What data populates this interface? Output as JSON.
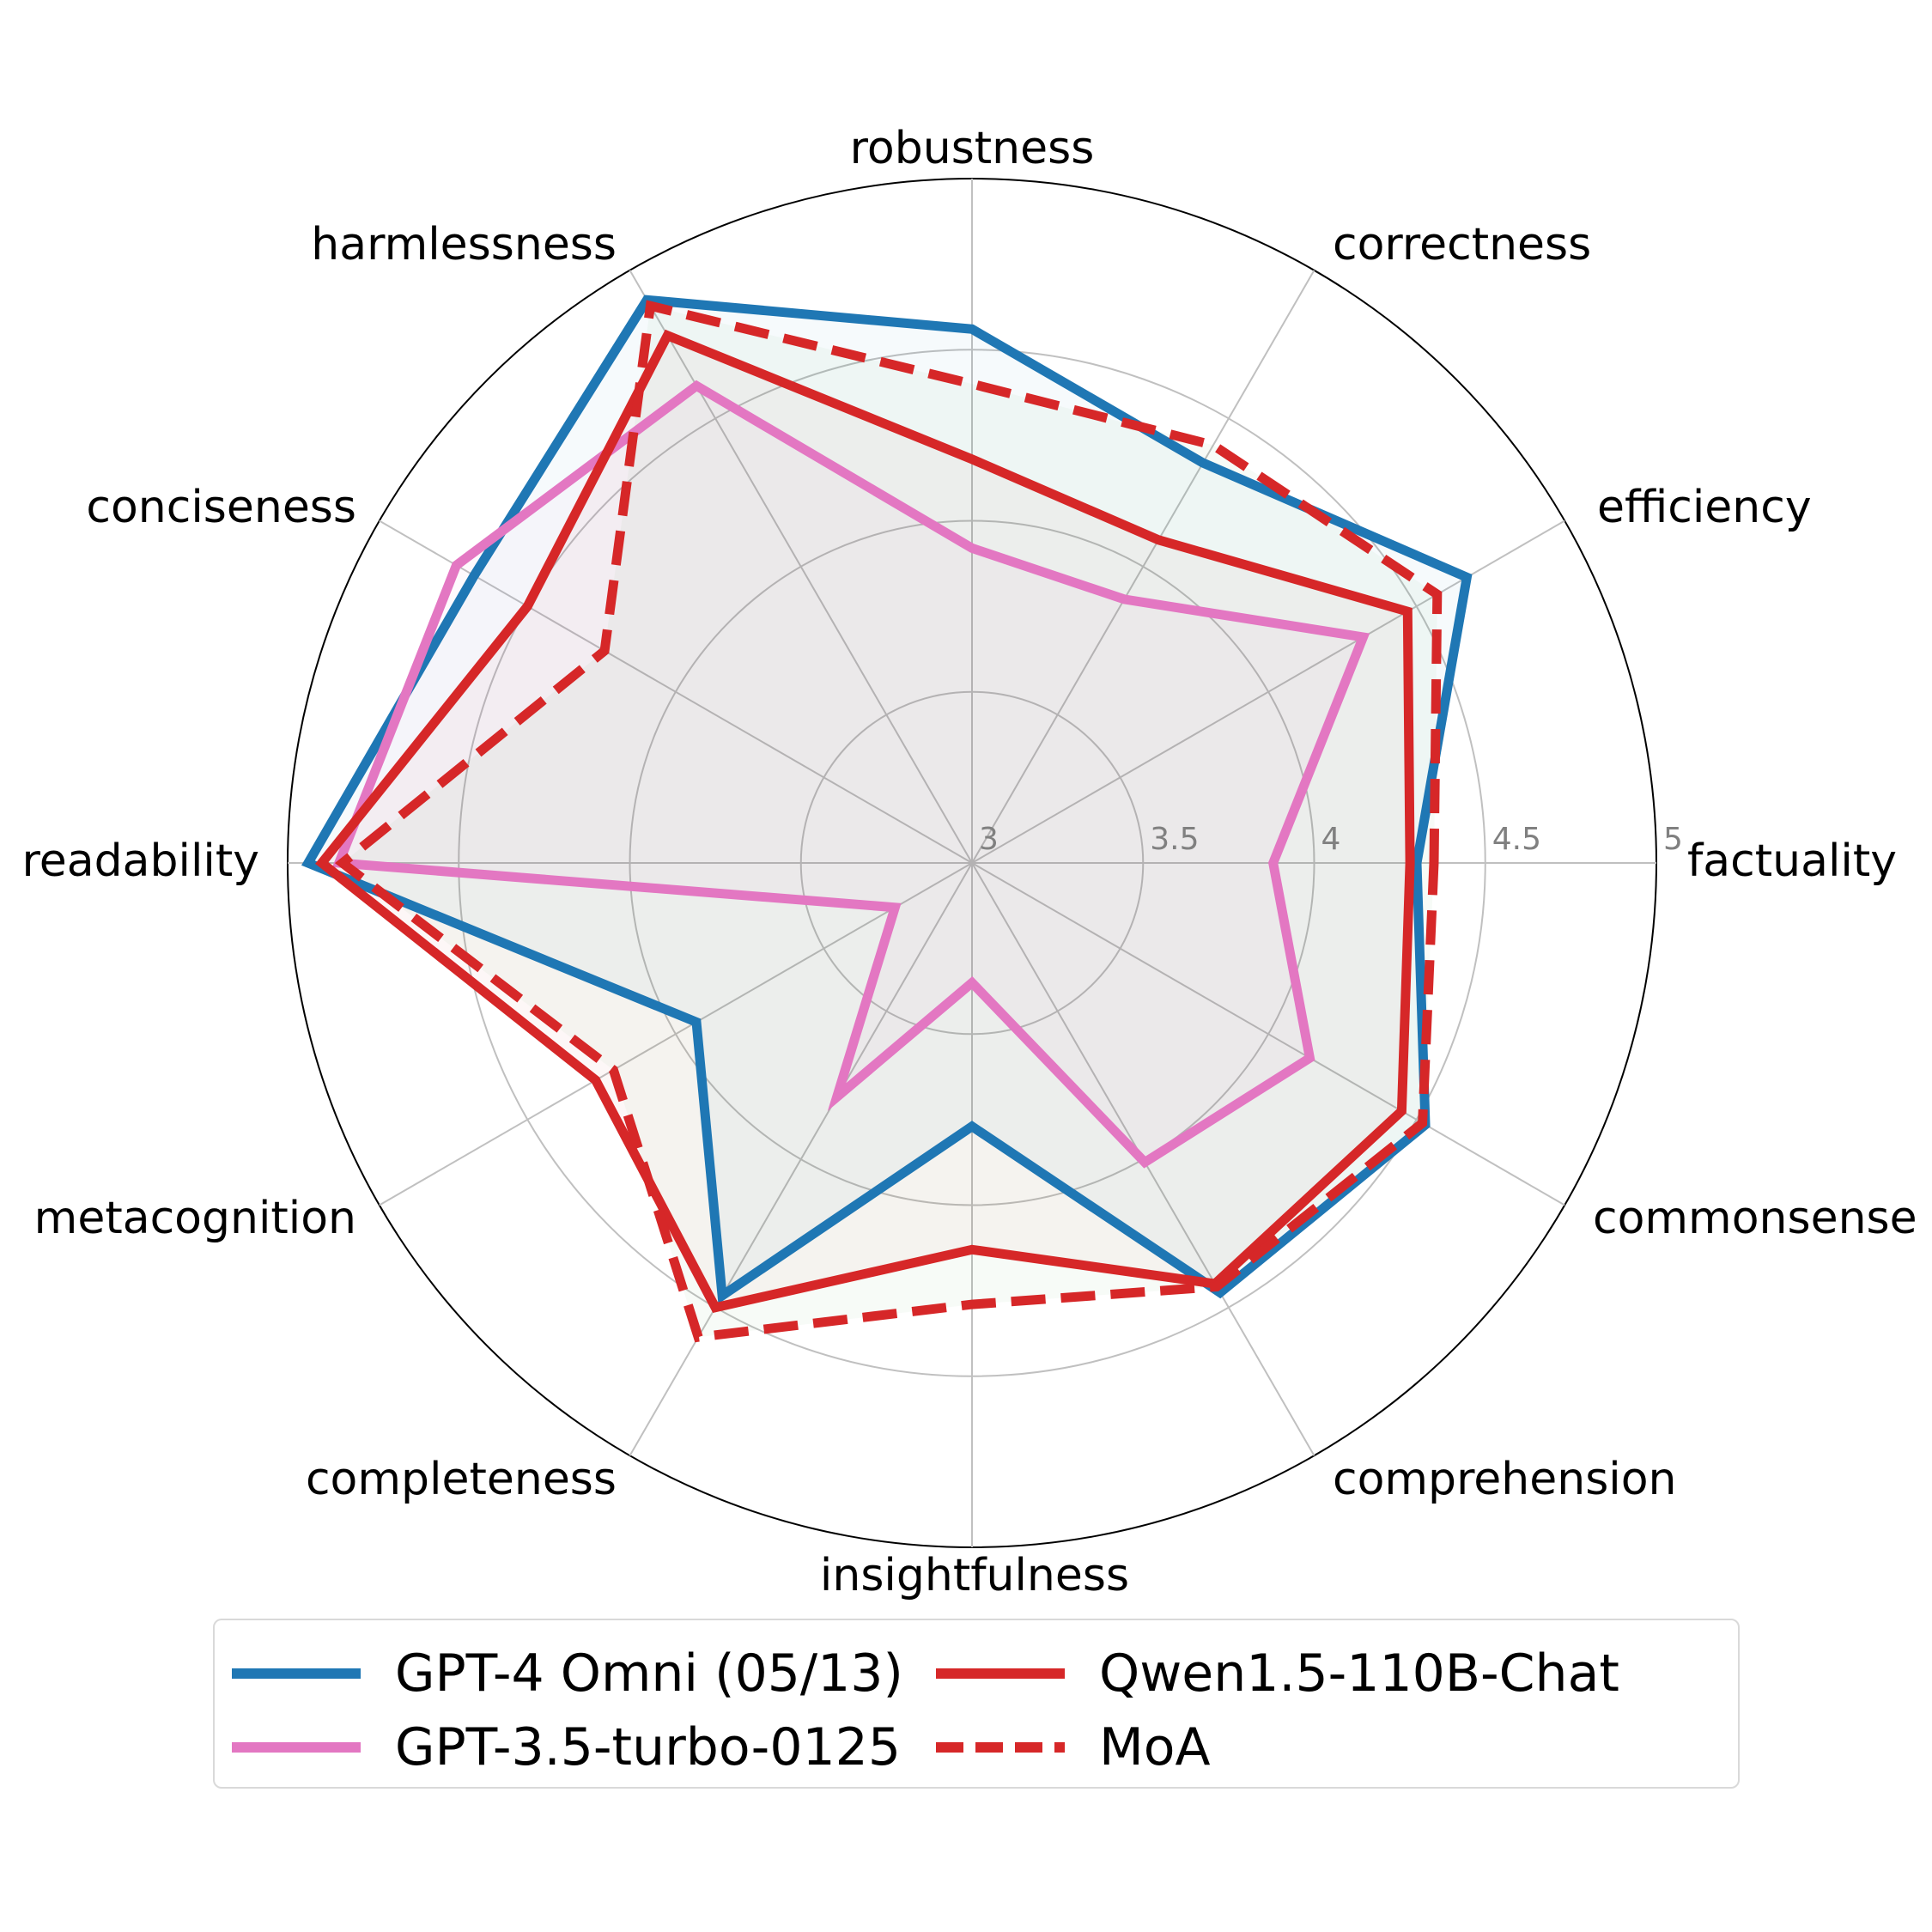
{
  "chart_data": {
    "type": "radar",
    "title": "",
    "axes": [
      "factuality",
      "efficiency",
      "correctness",
      "robustness",
      "harmlessness",
      "conciseness",
      "readability",
      "metacognition",
      "completeness",
      "insightfulness",
      "comprehension",
      "commonsense"
    ],
    "rlim": [
      3,
      5
    ],
    "rticks": [
      "3",
      "3.5",
      "4",
      "4.5",
      "5"
    ],
    "rtick_values": [
      3,
      3.5,
      4,
      4.5,
      5
    ],
    "grid": true,
    "legend_position": "bottom",
    "series": [
      {
        "name": "GPT-4 Omni (05/13)",
        "color": "#1f77b4",
        "linestyle": "solid",
        "fill": "#1f77b4",
        "values": [
          4.3,
          4.67,
          4.35,
          4.56,
          4.9,
          4.68,
          4.94,
          3.93,
          4.46,
          3.77,
          4.45,
          4.53
        ]
      },
      {
        "name": "GPT-3.5-turbo-0125",
        "color": "#e377c2",
        "linestyle": "solid",
        "fill": "#e377c2",
        "values": [
          3.88,
          4.32,
          3.89,
          3.92,
          4.61,
          4.74,
          4.85,
          3.26,
          3.79,
          3.35,
          4.01,
          4.14
        ]
      },
      {
        "name": "Qwen1.5-110B-Chat",
        "color": "#d62728",
        "linestyle": "solid",
        "fill": "#d62728",
        "values": [
          4.28,
          4.47,
          4.09,
          4.18,
          4.78,
          4.5,
          4.9,
          4.27,
          4.5,
          4.13,
          4.42,
          4.45
        ]
      },
      {
        "name": "MoA",
        "color": "#d62728",
        "linestyle": "dashed",
        "fill": "#2ca02c",
        "values": [
          4.35,
          4.57,
          4.41,
          4.4,
          4.88,
          4.24,
          4.84,
          4.21,
          4.6,
          4.29,
          4.43,
          4.52
        ]
      }
    ]
  },
  "legend": {
    "items": [
      {
        "label": "GPT-4 Omni (05/13)",
        "color": "#1f77b4",
        "style": "solid"
      },
      {
        "label": "Qwen1.5-110B-Chat",
        "color": "#d62728",
        "style": "solid"
      },
      {
        "label": "GPT-3.5-turbo-0125",
        "color": "#e377c2",
        "style": "solid"
      },
      {
        "label": "MoA",
        "color": "#d62728",
        "style": "dashed"
      }
    ]
  }
}
